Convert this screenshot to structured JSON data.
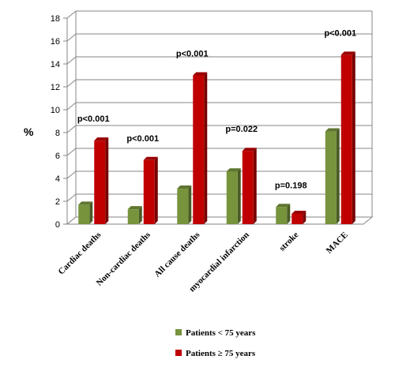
{
  "chart_data": {
    "type": "bar",
    "ylabel": "%",
    "ylim": [
      0,
      18
    ],
    "yticks": [
      "0",
      "2",
      "4",
      "6",
      "8",
      "10",
      "12",
      "14",
      "16",
      "18"
    ],
    "categories": [
      "Cardiac deaths",
      "Non-cardiac deaths",
      "All cause deaths",
      "myocardial infarction",
      "stroke",
      "MACE"
    ],
    "series": [
      {
        "name": "Patients < 75 years",
        "color": "#77933c",
        "values": [
          1.7,
          1.3,
          3.1,
          4.6,
          1.5,
          8.1
        ]
      },
      {
        "name": "Patients ≥ 75 years",
        "color": "#c00000",
        "values": [
          7.3,
          5.6,
          13.0,
          6.4,
          0.9,
          14.8
        ]
      }
    ],
    "annotations": [
      "p<0.001",
      "p<0.001",
      "p<0.001",
      "p=0.022",
      "p=0.198",
      "p<0.001"
    ],
    "grid": true,
    "legend_position": "bottom"
  }
}
